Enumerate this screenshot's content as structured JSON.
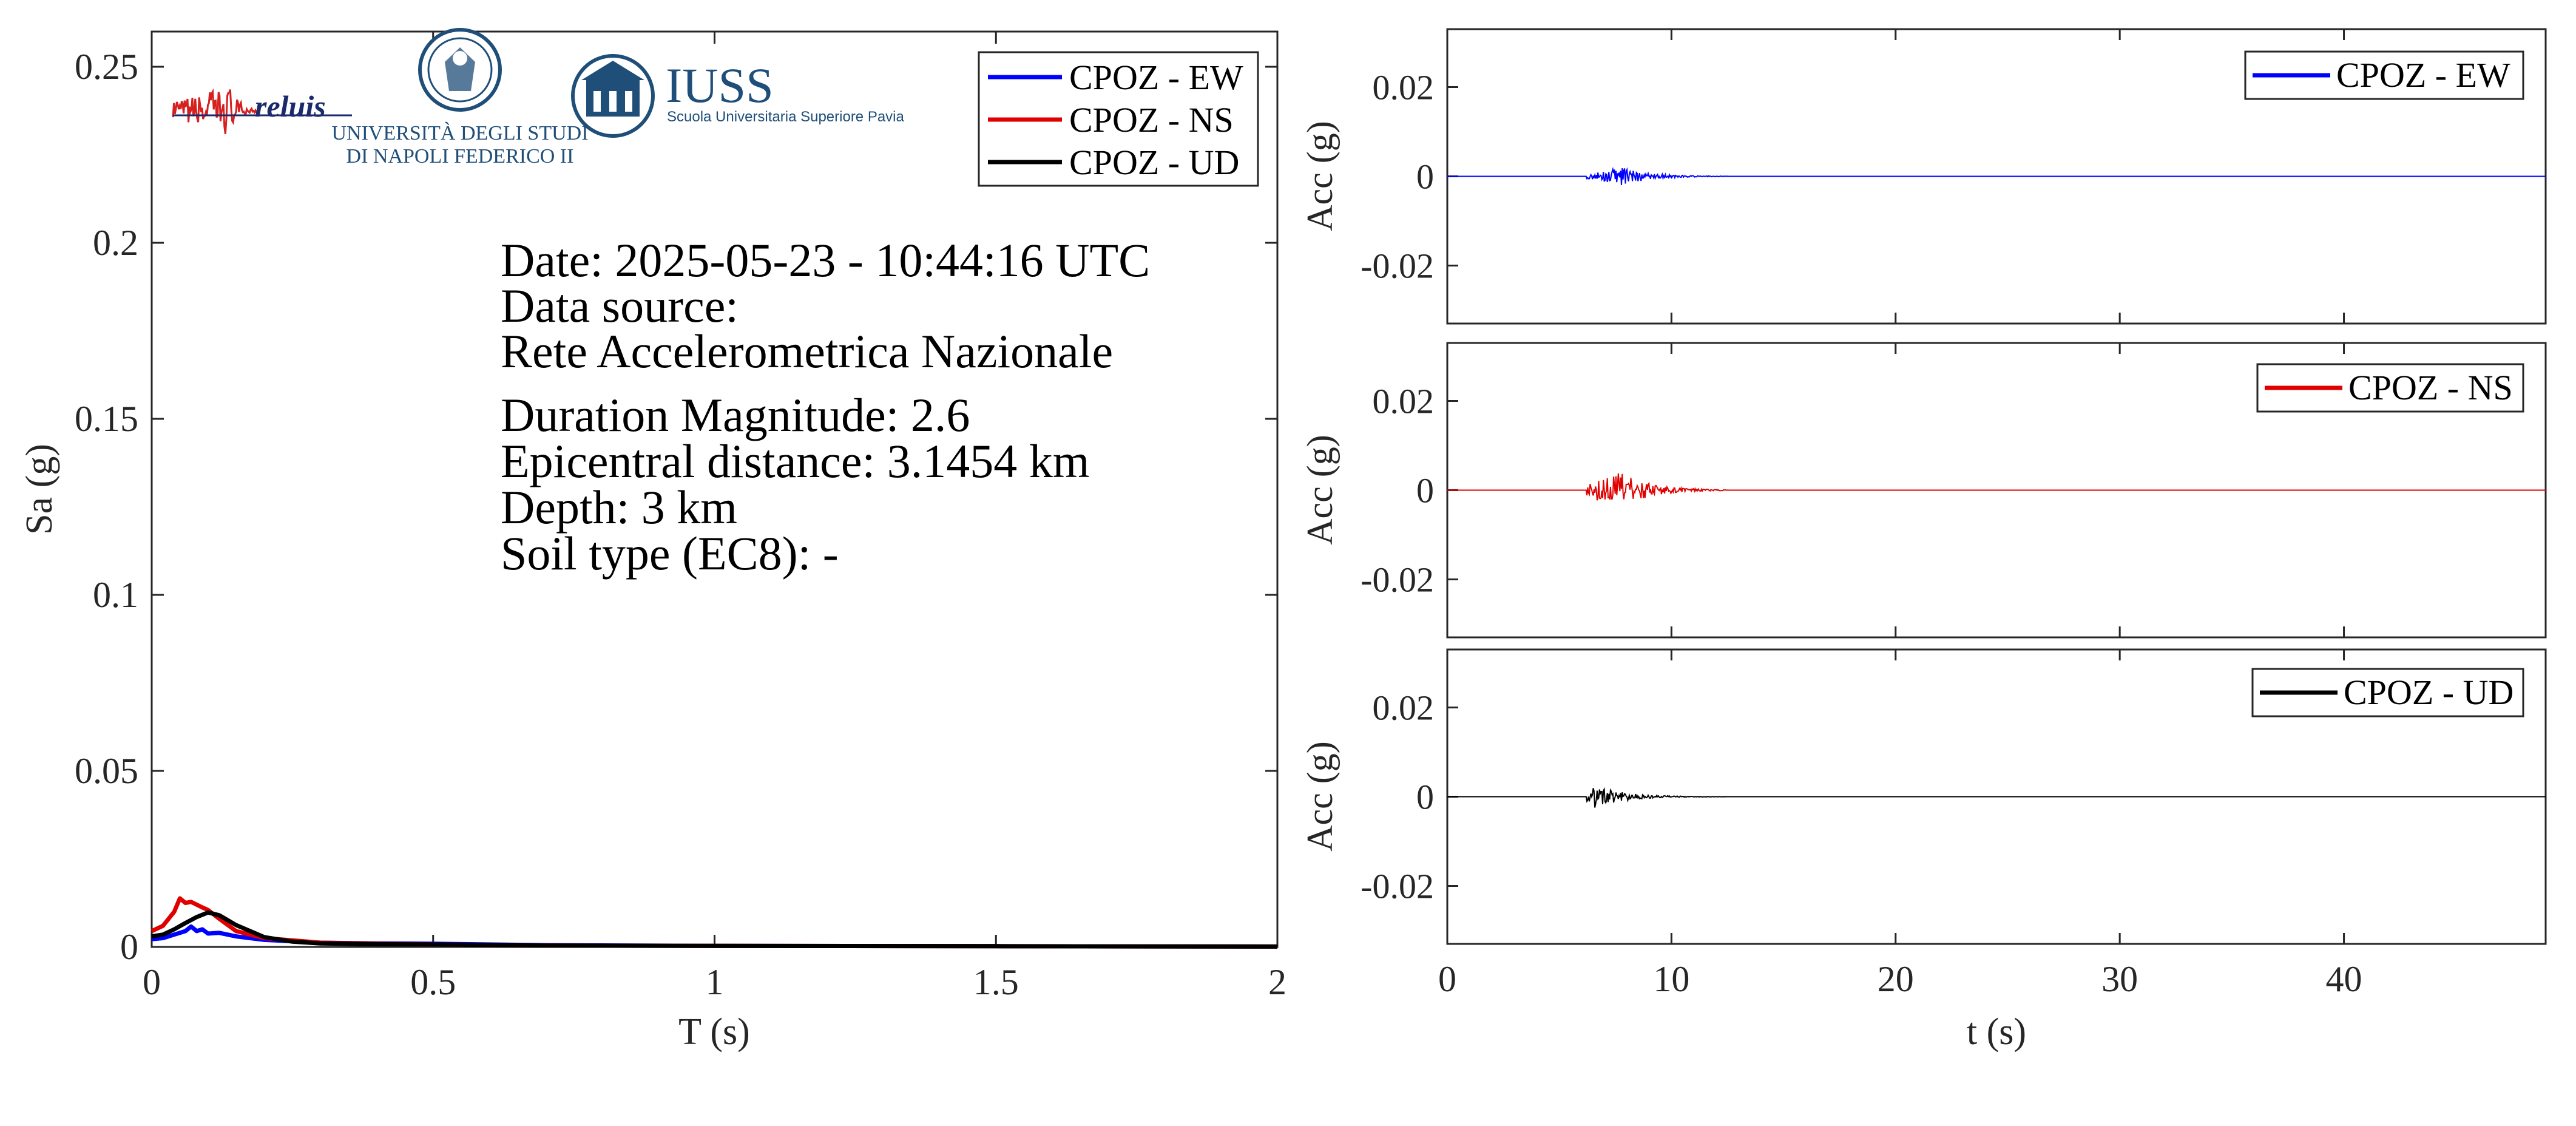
{
  "colors": {
    "ew": "#0000ff",
    "ns": "#e00000",
    "ud": "#000000",
    "axis": "#262626",
    "logo_blue": "#1f4e79",
    "logo_navy": "#1a2a6c"
  },
  "logos": {
    "reluis": {
      "text": "reluis"
    },
    "unina": {
      "line1": "UNIVERSITÀ DEGLI STUDI",
      "line2": "DI NAPOLI FEDERICO II"
    },
    "iuss": {
      "title": "IUSS",
      "subtitle": "Scuola Universitaria Superiore Pavia"
    }
  },
  "info": {
    "date": "Date: 2025-05-23 - 10:44:16 UTC",
    "source_label": "Data source:",
    "source_name": "Rete Accelerometrica Nazionale",
    "magnitude": "Duration Magnitude: 2.6",
    "distance": "Epicentral distance: 3.1454 km",
    "depth": "Depth: 3 km",
    "soil": "Soil type (EC8): -"
  },
  "chart_data": [
    {
      "type": "line",
      "xlabel": "T (s)",
      "ylabel": "Sa (g)",
      "xlim": [
        0,
        2
      ],
      "ylim": [
        0,
        0.26
      ],
      "xticks": [
        0,
        0.5,
        1,
        1.5,
        2
      ],
      "xtick_labels": [
        "0",
        "0.5",
        "1",
        "1.5",
        "2"
      ],
      "yticks": [
        0,
        0.05,
        0.1,
        0.15,
        0.2,
        0.25
      ],
      "ytick_labels": [
        "0",
        "0.05",
        "0.1",
        "0.15",
        "0.2",
        "0.25"
      ],
      "legend_position": "top-right",
      "series": [
        {
          "name": "CPOZ - EW",
          "x": [
            0,
            0.02,
            0.04,
            0.06,
            0.07,
            0.08,
            0.09,
            0.1,
            0.12,
            0.15,
            0.2,
            0.3,
            0.4,
            0.5,
            0.7,
            1.0,
            1.5,
            2.0
          ],
          "y": [
            0.0022,
            0.0025,
            0.0035,
            0.0045,
            0.0058,
            0.0045,
            0.005,
            0.0038,
            0.004,
            0.003,
            0.002,
            0.0012,
            0.001,
            0.0009,
            0.0005,
            0.0003,
            0.0002,
            0.0001
          ]
        },
        {
          "name": "CPOZ - NS",
          "x": [
            0,
            0.02,
            0.04,
            0.05,
            0.06,
            0.07,
            0.08,
            0.09,
            0.1,
            0.12,
            0.15,
            0.2,
            0.3,
            0.4,
            0.5,
            0.7,
            1.0,
            1.5,
            2.0
          ],
          "y": [
            0.0045,
            0.006,
            0.01,
            0.0138,
            0.0125,
            0.0128,
            0.012,
            0.0112,
            0.0105,
            0.008,
            0.0045,
            0.0025,
            0.0012,
            0.0009,
            0.0007,
            0.0004,
            0.0003,
            0.0002,
            0.0001
          ]
        },
        {
          "name": "CPOZ - UD",
          "x": [
            0,
            0.02,
            0.04,
            0.06,
            0.08,
            0.1,
            0.12,
            0.15,
            0.2,
            0.25,
            0.3,
            0.4,
            0.5,
            0.7,
            1.0,
            1.5,
            2.0
          ],
          "y": [
            0.003,
            0.0035,
            0.005,
            0.0068,
            0.0085,
            0.0098,
            0.009,
            0.0062,
            0.0028,
            0.0015,
            0.001,
            0.0008,
            0.0007,
            0.0004,
            0.0003,
            0.0002,
            0.0001
          ]
        }
      ]
    },
    {
      "type": "line",
      "xlabel": "",
      "ylabel": "Acc (g)",
      "xlim": [
        0,
        49
      ],
      "ylim": [
        -0.033,
        0.033
      ],
      "yticks": [
        -0.02,
        0,
        0.02
      ],
      "ytick_labels": [
        "-0.02",
        "0",
        "0.02"
      ],
      "legend_position": "top-right",
      "series": [
        {
          "name": "CPOZ - EW",
          "onset": 6.2,
          "peak_time": 7.8,
          "peak": 0.002,
          "end": 12.5
        }
      ]
    },
    {
      "type": "line",
      "xlabel": "",
      "ylabel": "Acc (g)",
      "xlim": [
        0,
        49
      ],
      "ylim": [
        -0.033,
        0.033
      ],
      "yticks": [
        -0.02,
        0,
        0.02
      ],
      "ytick_labels": [
        "-0.02",
        "0",
        "0.02"
      ],
      "legend_position": "top-right",
      "series": [
        {
          "name": "CPOZ - NS",
          "onset": 6.2,
          "peak_time": 7.6,
          "peak": 0.0045,
          "end": 12.5
        }
      ]
    },
    {
      "type": "line",
      "xlabel": "t (s)",
      "ylabel": "Acc (g)",
      "xlim": [
        0,
        49
      ],
      "ylim": [
        -0.033,
        0.033
      ],
      "xticks": [
        0,
        10,
        20,
        30,
        40
      ],
      "xtick_labels": [
        "0",
        "10",
        "20",
        "30",
        "40"
      ],
      "yticks": [
        -0.02,
        0,
        0.02
      ],
      "ytick_labels": [
        "-0.02",
        "0",
        "0.02"
      ],
      "legend_position": "top-right",
      "series": [
        {
          "name": "CPOZ - UD",
          "onset": 6.2,
          "peak_time": 6.4,
          "peak": 0.003,
          "end": 12.5
        }
      ]
    }
  ]
}
